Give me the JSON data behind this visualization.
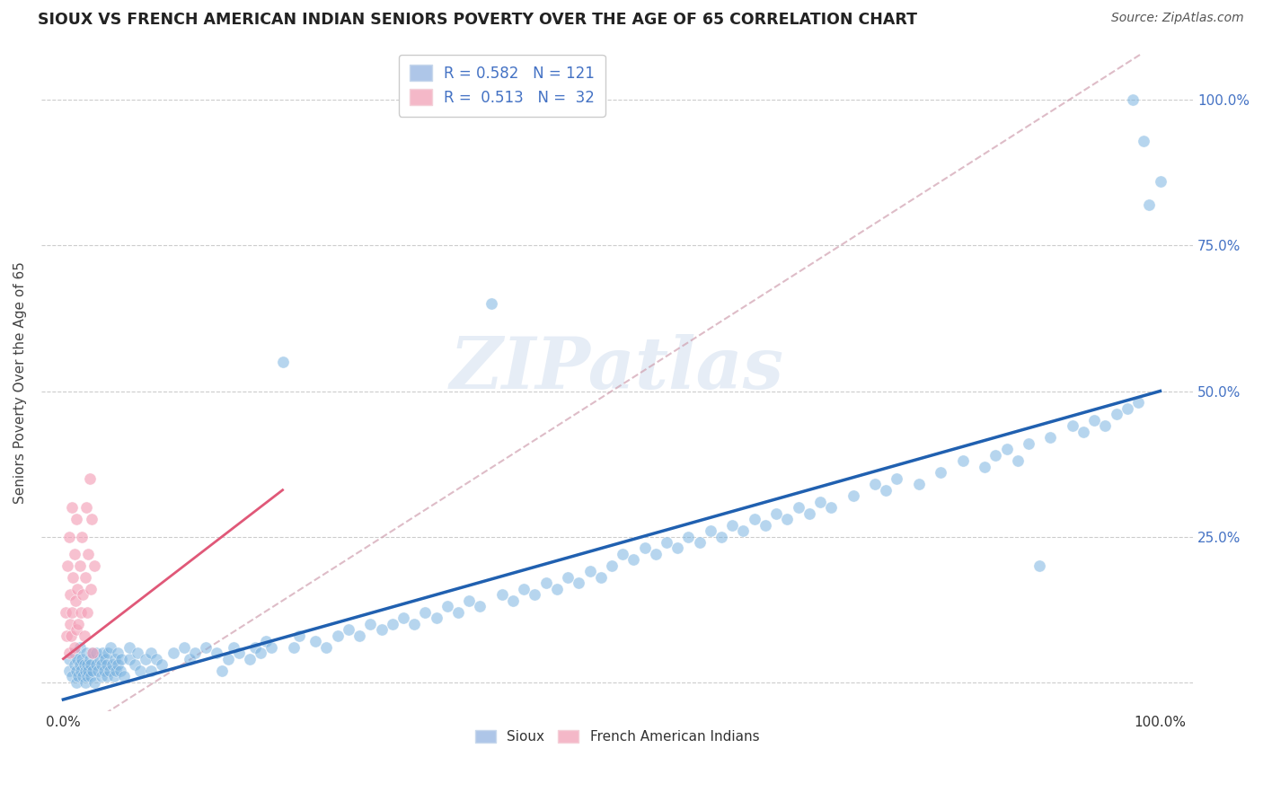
{
  "title": "SIOUX VS FRENCH AMERICAN INDIAN SENIORS POVERTY OVER THE AGE OF 65 CORRELATION CHART",
  "source": "Source: ZipAtlas.com",
  "ylabel": "Seniors Poverty Over the Age of 65",
  "xlim": [
    -0.02,
    1.03
  ],
  "ylim": [
    -0.05,
    1.08
  ],
  "watermark": "ZIPatlas",
  "sioux_color": "#7ab3e0",
  "french_color": "#f4a0b8",
  "sioux_line_color": "#2060b0",
  "french_line_color": "#e05878",
  "dashed_line_color": "#d0a0b0",
  "sioux_line": [
    0.0,
    -0.03,
    1.0,
    0.5
  ],
  "french_line": [
    0.0,
    0.04,
    0.2,
    0.33
  ],
  "dashed_line": [
    0.0,
    -0.1,
    1.0,
    1.1
  ],
  "sioux_points": [
    [
      0.005,
      0.02
    ],
    [
      0.005,
      0.04
    ],
    [
      0.008,
      0.01
    ],
    [
      0.01,
      0.03
    ],
    [
      0.01,
      0.05
    ],
    [
      0.012,
      0.0
    ],
    [
      0.012,
      0.02
    ],
    [
      0.013,
      0.04
    ],
    [
      0.014,
      0.01
    ],
    [
      0.015,
      0.03
    ],
    [
      0.015,
      0.06
    ],
    [
      0.016,
      0.02
    ],
    [
      0.017,
      0.04
    ],
    [
      0.018,
      0.01
    ],
    [
      0.019,
      0.03
    ],
    [
      0.02,
      0.0
    ],
    [
      0.02,
      0.02
    ],
    [
      0.021,
      0.05
    ],
    [
      0.022,
      0.01
    ],
    [
      0.022,
      0.03
    ],
    [
      0.023,
      0.02
    ],
    [
      0.024,
      0.04
    ],
    [
      0.025,
      0.01
    ],
    [
      0.025,
      0.03
    ],
    [
      0.026,
      0.05
    ],
    [
      0.027,
      0.02
    ],
    [
      0.028,
      0.0
    ],
    [
      0.03,
      0.03
    ],
    [
      0.03,
      0.05
    ],
    [
      0.032,
      0.02
    ],
    [
      0.033,
      0.04
    ],
    [
      0.035,
      0.01
    ],
    [
      0.035,
      0.03
    ],
    [
      0.036,
      0.05
    ],
    [
      0.037,
      0.02
    ],
    [
      0.038,
      0.04
    ],
    [
      0.04,
      0.01
    ],
    [
      0.04,
      0.03
    ],
    [
      0.041,
      0.05
    ],
    [
      0.042,
      0.02
    ],
    [
      0.043,
      0.06
    ],
    [
      0.045,
      0.03
    ],
    [
      0.046,
      0.01
    ],
    [
      0.047,
      0.04
    ],
    [
      0.048,
      0.02
    ],
    [
      0.05,
      0.03
    ],
    [
      0.05,
      0.05
    ],
    [
      0.052,
      0.02
    ],
    [
      0.053,
      0.04
    ],
    [
      0.055,
      0.01
    ],
    [
      0.06,
      0.04
    ],
    [
      0.06,
      0.06
    ],
    [
      0.065,
      0.03
    ],
    [
      0.068,
      0.05
    ],
    [
      0.07,
      0.02
    ],
    [
      0.075,
      0.04
    ],
    [
      0.08,
      0.05
    ],
    [
      0.08,
      0.02
    ],
    [
      0.085,
      0.04
    ],
    [
      0.09,
      0.03
    ],
    [
      0.1,
      0.05
    ],
    [
      0.11,
      0.06
    ],
    [
      0.115,
      0.04
    ],
    [
      0.12,
      0.05
    ],
    [
      0.13,
      0.06
    ],
    [
      0.14,
      0.05
    ],
    [
      0.145,
      0.02
    ],
    [
      0.15,
      0.04
    ],
    [
      0.155,
      0.06
    ],
    [
      0.16,
      0.05
    ],
    [
      0.17,
      0.04
    ],
    [
      0.175,
      0.06
    ],
    [
      0.18,
      0.05
    ],
    [
      0.185,
      0.07
    ],
    [
      0.19,
      0.06
    ],
    [
      0.2,
      0.55
    ],
    [
      0.21,
      0.06
    ],
    [
      0.215,
      0.08
    ],
    [
      0.23,
      0.07
    ],
    [
      0.24,
      0.06
    ],
    [
      0.25,
      0.08
    ],
    [
      0.26,
      0.09
    ],
    [
      0.27,
      0.08
    ],
    [
      0.28,
      0.1
    ],
    [
      0.29,
      0.09
    ],
    [
      0.3,
      0.1
    ],
    [
      0.31,
      0.11
    ],
    [
      0.32,
      0.1
    ],
    [
      0.33,
      0.12
    ],
    [
      0.34,
      0.11
    ],
    [
      0.35,
      0.13
    ],
    [
      0.36,
      0.12
    ],
    [
      0.37,
      0.14
    ],
    [
      0.38,
      0.13
    ],
    [
      0.39,
      0.65
    ],
    [
      0.4,
      0.15
    ],
    [
      0.41,
      0.14
    ],
    [
      0.42,
      0.16
    ],
    [
      0.43,
      0.15
    ],
    [
      0.44,
      0.17
    ],
    [
      0.45,
      0.16
    ],
    [
      0.46,
      0.18
    ],
    [
      0.47,
      0.17
    ],
    [
      0.48,
      0.19
    ],
    [
      0.49,
      0.18
    ],
    [
      0.5,
      0.2
    ],
    [
      0.51,
      0.22
    ],
    [
      0.52,
      0.21
    ],
    [
      0.53,
      0.23
    ],
    [
      0.54,
      0.22
    ],
    [
      0.55,
      0.24
    ],
    [
      0.56,
      0.23
    ],
    [
      0.57,
      0.25
    ],
    [
      0.58,
      0.24
    ],
    [
      0.59,
      0.26
    ],
    [
      0.6,
      0.25
    ],
    [
      0.61,
      0.27
    ],
    [
      0.62,
      0.26
    ],
    [
      0.63,
      0.28
    ],
    [
      0.64,
      0.27
    ],
    [
      0.65,
      0.29
    ],
    [
      0.66,
      0.28
    ],
    [
      0.67,
      0.3
    ],
    [
      0.68,
      0.29
    ],
    [
      0.69,
      0.31
    ],
    [
      0.7,
      0.3
    ],
    [
      0.72,
      0.32
    ],
    [
      0.74,
      0.34
    ],
    [
      0.75,
      0.33
    ],
    [
      0.76,
      0.35
    ],
    [
      0.78,
      0.34
    ],
    [
      0.8,
      0.36
    ],
    [
      0.82,
      0.38
    ],
    [
      0.84,
      0.37
    ],
    [
      0.85,
      0.39
    ],
    [
      0.86,
      0.4
    ],
    [
      0.87,
      0.38
    ],
    [
      0.88,
      0.41
    ],
    [
      0.89,
      0.2
    ],
    [
      0.9,
      0.42
    ],
    [
      0.92,
      0.44
    ],
    [
      0.93,
      0.43
    ],
    [
      0.94,
      0.45
    ],
    [
      0.95,
      0.44
    ],
    [
      0.96,
      0.46
    ],
    [
      0.97,
      0.47
    ],
    [
      0.975,
      1.0
    ],
    [
      0.98,
      0.48
    ],
    [
      0.985,
      0.93
    ],
    [
      0.99,
      0.82
    ],
    [
      1.0,
      0.86
    ]
  ],
  "french_points": [
    [
      0.002,
      0.12
    ],
    [
      0.003,
      0.08
    ],
    [
      0.004,
      0.2
    ],
    [
      0.005,
      0.05
    ],
    [
      0.005,
      0.25
    ],
    [
      0.006,
      0.1
    ],
    [
      0.006,
      0.15
    ],
    [
      0.007,
      0.08
    ],
    [
      0.008,
      0.3
    ],
    [
      0.008,
      0.12
    ],
    [
      0.009,
      0.18
    ],
    [
      0.01,
      0.06
    ],
    [
      0.01,
      0.22
    ],
    [
      0.011,
      0.14
    ],
    [
      0.012,
      0.09
    ],
    [
      0.012,
      0.28
    ],
    [
      0.013,
      0.16
    ],
    [
      0.014,
      0.1
    ],
    [
      0.015,
      0.2
    ],
    [
      0.016,
      0.12
    ],
    [
      0.017,
      0.25
    ],
    [
      0.018,
      0.15
    ],
    [
      0.019,
      0.08
    ],
    [
      0.02,
      0.18
    ],
    [
      0.021,
      0.3
    ],
    [
      0.022,
      0.12
    ],
    [
      0.023,
      0.22
    ],
    [
      0.024,
      0.35
    ],
    [
      0.025,
      0.16
    ],
    [
      0.026,
      0.28
    ],
    [
      0.027,
      0.05
    ],
    [
      0.028,
      0.2
    ]
  ]
}
